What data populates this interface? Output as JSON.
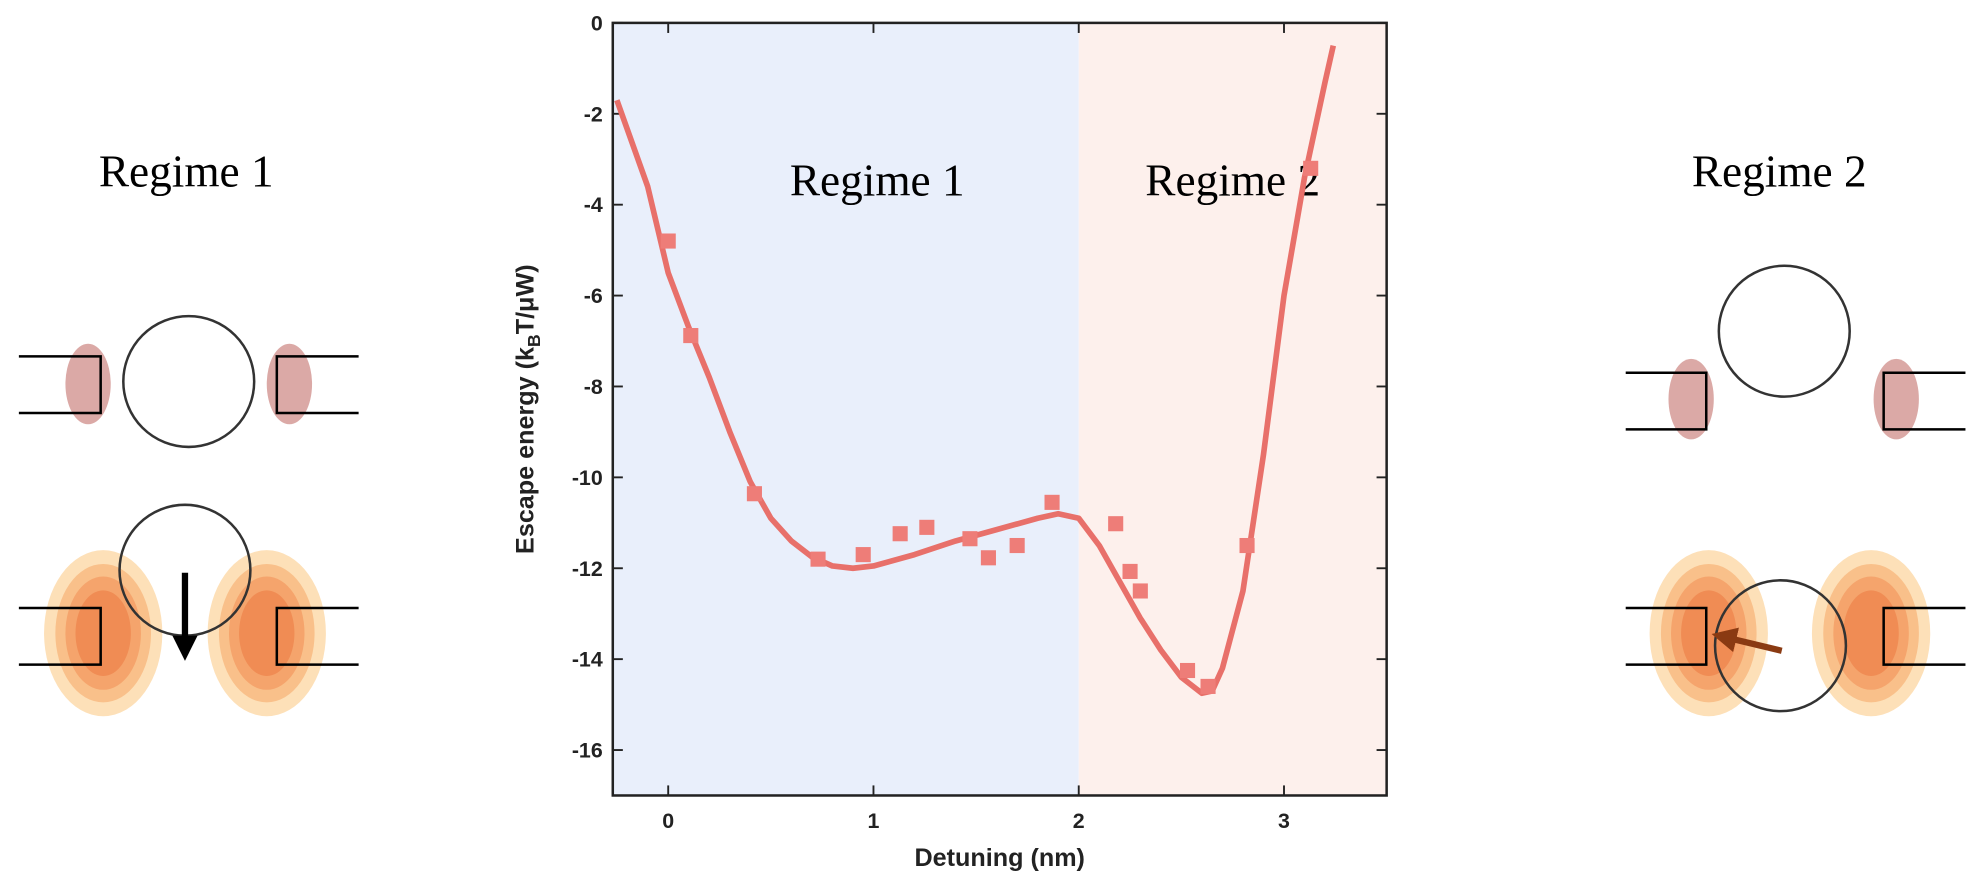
{
  "chart_data": {
    "type": "line",
    "x_label": "Detuning (nm)",
    "y_label": [
      "Escape energy (k",
      "B",
      "T/μW)"
    ],
    "xlim": [
      -0.27,
      3.5
    ],
    "ylim": [
      -17,
      0
    ],
    "xticks": [
      0,
      1,
      2,
      3
    ],
    "yticks": [
      0,
      -2,
      -4,
      -6,
      -8,
      -10,
      -12,
      -14,
      -16
    ],
    "regions": [
      {
        "label": "Regime 1",
        "xrange": [
          -0.27,
          2
        ],
        "color": "#e9effb"
      },
      {
        "label": "Regime 2",
        "xrange": [
          2,
          3.5
        ],
        "color": "#fdf0ec"
      }
    ],
    "series": [
      {
        "style": "line",
        "color": "#e8706a",
        "x": [
          -0.25,
          -0.1,
          0,
          0.1,
          0.2,
          0.3,
          0.4,
          0.5,
          0.6,
          0.7,
          0.8,
          0.9,
          1.0,
          1.2,
          1.4,
          1.6,
          1.8,
          1.9,
          2.0,
          2.1,
          2.2,
          2.3,
          2.4,
          2.5,
          2.6,
          2.65,
          2.7,
          2.8,
          2.9,
          3.0,
          3.1,
          3.2,
          3.24
        ],
        "values": [
          -1.7,
          -3.6,
          -5.5,
          -6.7,
          -7.8,
          -9.0,
          -10.1,
          -10.9,
          -11.4,
          -11.75,
          -11.95,
          -12.0,
          -11.95,
          -11.7,
          -11.4,
          -11.15,
          -10.9,
          -10.8,
          -10.9,
          -11.5,
          -12.3,
          -13.1,
          -13.8,
          -14.4,
          -14.75,
          -14.7,
          -14.2,
          -12.5,
          -9.5,
          -6.0,
          -3.4,
          -1.3,
          -0.5
        ]
      },
      {
        "style": "markers",
        "color": "#ee7d78",
        "x": [
          0,
          0.11,
          0.42,
          0.73,
          0.95,
          1.13,
          1.26,
          1.47,
          1.56,
          1.7,
          1.87,
          2.18,
          2.25,
          2.3,
          2.53,
          2.63,
          2.82,
          3.13
        ],
        "values": [
          -4.8,
          -6.88,
          -10.36,
          -11.8,
          -11.7,
          -11.24,
          -11.1,
          -11.35,
          -11.77,
          -11.5,
          -10.55,
          -11.02,
          -12.07,
          -12.5,
          -14.25,
          -14.6,
          -11.5,
          -3.2
        ]
      }
    ]
  },
  "diagrams": {
    "left": {
      "title": "Regime 1"
    },
    "right": {
      "title": "Regime 2"
    }
  }
}
